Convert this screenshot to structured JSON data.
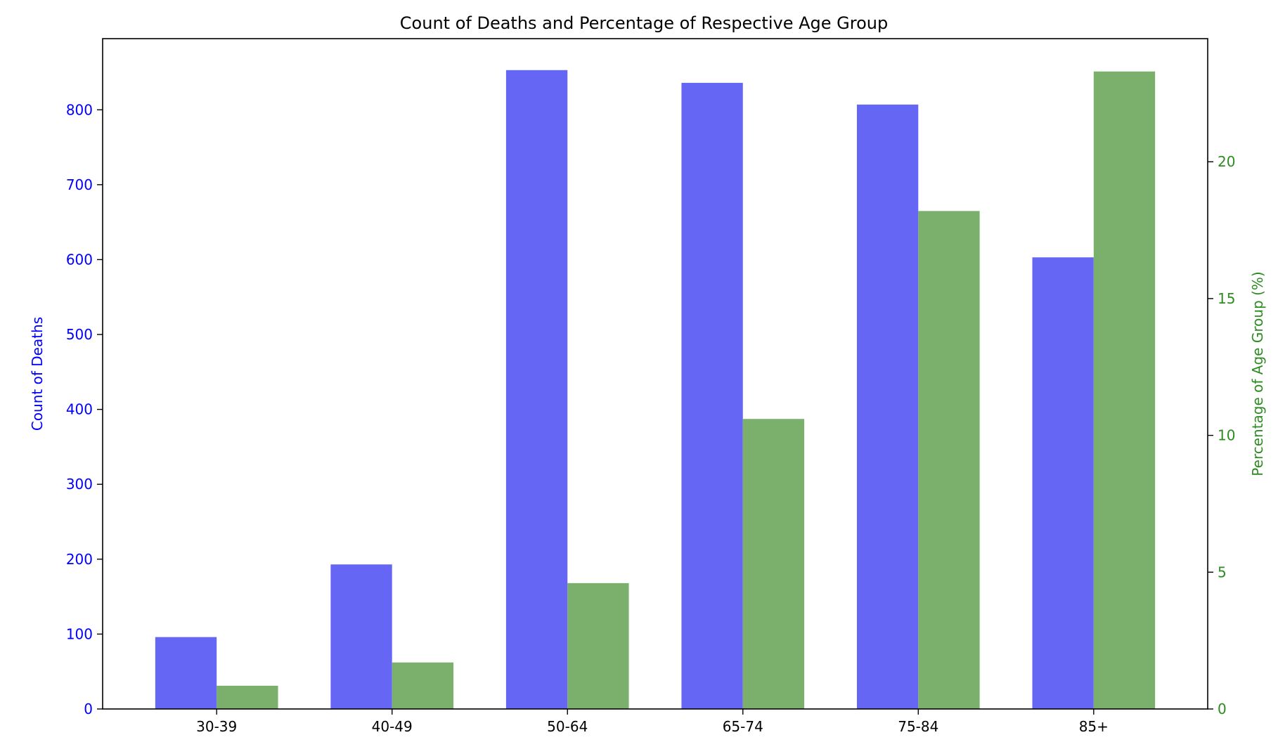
{
  "chart_data": {
    "type": "bar",
    "title": "Count of Deaths and Percentage of Respective Age Group",
    "xlabel": "",
    "categories": [
      "30-39",
      "40-49",
      "50-64",
      "65-74",
      "75-84",
      "85+"
    ],
    "y_left": {
      "label": "Count of Deaths",
      "ylim": [
        0,
        895
      ],
      "ticks": [
        0,
        100,
        200,
        300,
        400,
        500,
        600,
        700,
        800
      ],
      "color": "#0000ff"
    },
    "y_right": {
      "label": "Percentage of Age Group (%)",
      "ylim": [
        0,
        24.5
      ],
      "ticks": [
        0,
        5,
        10,
        15,
        20
      ],
      "color": "#2e8b22"
    },
    "series": [
      {
        "values": [
          96,
          193,
          853,
          836,
          807,
          603
        ],
        "color": "#6666f5",
        "axis": "left"
      },
      {
        "values": [
          0.85,
          1.7,
          4.6,
          10.6,
          18.2,
          23.3
        ],
        "color": "#7aaf6c",
        "axis": "right"
      }
    ],
    "grid": false,
    "legend": "none"
  }
}
